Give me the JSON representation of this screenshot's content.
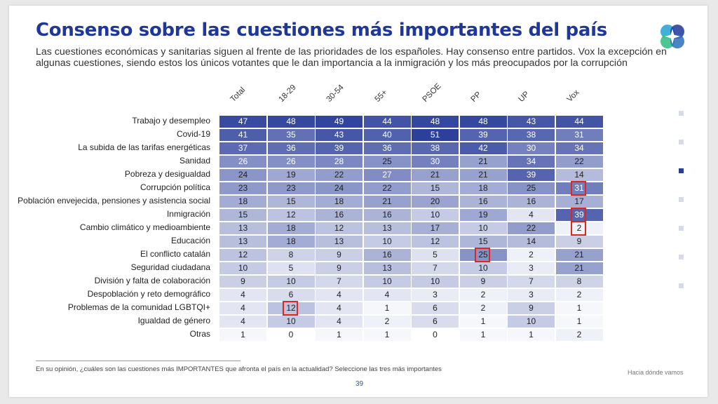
{
  "title": "Consenso sobre las cuestiones más importantes del país",
  "subtitle": "Las cuestiones económicas y sanitarias siguen al frente de las prioridades de los españoles. Hay consenso entre partidos. Vox la excepción en algunas cuestiones, siendo estos los únicos votantes que le dan importancia a la inmigración y los más preocupados por la corrupción",
  "footnote": "En su opinión, ¿cuáles son las cuestiones más IMPORTANTES que afronta el país en la actualidad? Seleccione las tres más importantes",
  "page_number": "39",
  "brand": "Hacia dónde vamos",
  "colors": {
    "title": "#1f3799",
    "highlight": "#e1261c",
    "heat_max": "#2b3f9b",
    "heat_min": "#ffffff"
  },
  "nav": {
    "count": 7,
    "active_index": 2
  },
  "chart_data": {
    "type": "heatmap",
    "columns": [
      "Total",
      "18-29",
      "30-54",
      "55+",
      "PSOE",
      "PP",
      "UP",
      "Vox"
    ],
    "rows": [
      {
        "label": "Trabajo y desempleo",
        "values": [
          47,
          48,
          49,
          44,
          48,
          48,
          43,
          44
        ]
      },
      {
        "label": "Covid-19",
        "values": [
          41,
          35,
          43,
          40,
          51,
          39,
          38,
          31
        ]
      },
      {
        "label": "La subida de las tarifas energéticas",
        "values": [
          37,
          36,
          39,
          36,
          38,
          42,
          30,
          34
        ]
      },
      {
        "label": "Sanidad",
        "values": [
          26,
          26,
          28,
          25,
          30,
          21,
          34,
          22
        ]
      },
      {
        "label": "Pobreza y desigualdad",
        "values": [
          24,
          19,
          22,
          27,
          21,
          21,
          39,
          14
        ]
      },
      {
        "label": "Corrupción política",
        "values": [
          23,
          23,
          24,
          22,
          15,
          18,
          25,
          31
        ]
      },
      {
        "label": "Población envejecida, pensiones y asistencia social",
        "values": [
          18,
          15,
          18,
          21,
          20,
          16,
          16,
          17
        ]
      },
      {
        "label": "Inmigración",
        "values": [
          15,
          12,
          16,
          16,
          10,
          19,
          4,
          39
        ]
      },
      {
        "label": "Cambio climático y medioambiente",
        "values": [
          13,
          18,
          12,
          13,
          17,
          10,
          22,
          2
        ]
      },
      {
        "label": "Educación",
        "values": [
          13,
          18,
          13,
          10,
          12,
          15,
          14,
          9
        ]
      },
      {
        "label": "El conflicto catalán",
        "values": [
          12,
          8,
          9,
          16,
          5,
          25,
          2,
          21
        ]
      },
      {
        "label": "Seguridad ciudadana",
        "values": [
          10,
          5,
          9,
          13,
          7,
          10,
          3,
          21
        ]
      },
      {
        "label": "División y falta de colaboración",
        "values": [
          9,
          10,
          7,
          10,
          10,
          9,
          7,
          8
        ]
      },
      {
        "label": "Despoblación y reto demográfico",
        "values": [
          4,
          6,
          4,
          4,
          3,
          2,
          3,
          2
        ]
      },
      {
        "label": "Problemas de la comunidad LGBTQI+",
        "values": [
          4,
          12,
          4,
          1,
          6,
          2,
          9,
          1
        ]
      },
      {
        "label": "Igualdad de género",
        "values": [
          4,
          10,
          4,
          2,
          6,
          1,
          10,
          1
        ]
      },
      {
        "label": "Otras",
        "values": [
          1,
          0,
          1,
          1,
          0,
          1,
          1,
          2
        ]
      }
    ],
    "highlighted_cells": [
      {
        "row": "Corrupción política",
        "column": "Vox"
      },
      {
        "row": "Inmigración",
        "column": "Vox"
      },
      {
        "row": "Cambio climático y medioambiente",
        "column": "Vox"
      },
      {
        "row": "El conflicto catalán",
        "column": "PP"
      },
      {
        "row": "Problemas de la comunidad LGBTQI+",
        "column": "18-29"
      }
    ],
    "value_range": [
      0,
      51
    ]
  }
}
